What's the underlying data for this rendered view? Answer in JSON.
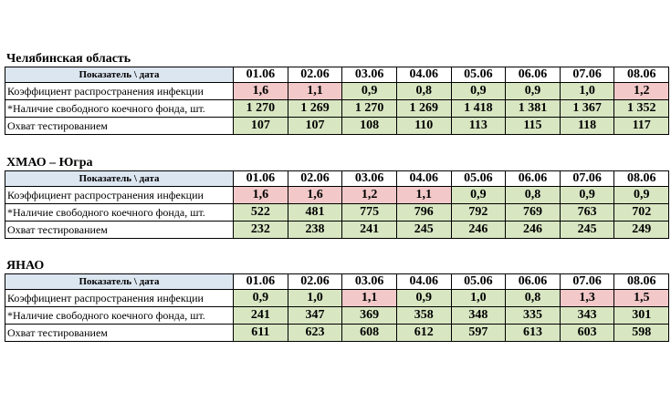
{
  "sections": [
    {
      "title": "Челябинская область",
      "header_label": "Показатель \\ дата",
      "dates": [
        "01.06",
        "02.06",
        "03.06",
        "04.06",
        "05.06",
        "06.06",
        "07.06",
        "08.06"
      ],
      "rows": [
        {
          "label": "Коэффициент распространения инфекции",
          "values": [
            "1,6",
            "1,1",
            "0,9",
            "0,8",
            "0,9",
            "0,9",
            "1,0",
            "1,2"
          ],
          "colors": [
            "#f2c8c8",
            "#f2c8c8",
            "#d8e6c2",
            "#d8e6c2",
            "#d8e6c2",
            "#d8e6c2",
            "#d8e6c2",
            "#f2c8c8"
          ]
        },
        {
          "label": "*Наличие свободного коечного фонда, шт.",
          "values": [
            "1 270",
            "1 269",
            "1 270",
            "1 269",
            "1 418",
            "1 381",
            "1 367",
            "1 352"
          ],
          "colors": [
            "#d8e6c2",
            "#d8e6c2",
            "#d8e6c2",
            "#d8e6c2",
            "#d8e6c2",
            "#d8e6c2",
            "#d8e6c2",
            "#d8e6c2"
          ]
        },
        {
          "label": "Охват тестированием",
          "values": [
            "107",
            "107",
            "108",
            "110",
            "113",
            "115",
            "118",
            "117"
          ],
          "colors": [
            "#d8e6c2",
            "#d8e6c2",
            "#d8e6c2",
            "#d8e6c2",
            "#d8e6c2",
            "#d8e6c2",
            "#d8e6c2",
            "#d8e6c2"
          ]
        }
      ]
    },
    {
      "title": "ХМАО – Югра",
      "header_label": "Показатель \\ дата",
      "dates": [
        "01.06",
        "02.06",
        "03.06",
        "04.06",
        "05.06",
        "06.06",
        "07.06",
        "08.06"
      ],
      "rows": [
        {
          "label": "Коэффициент распространения инфекции",
          "values": [
            "1,6",
            "1,6",
            "1,2",
            "1,1",
            "0,9",
            "0,8",
            "0,9",
            "0,9"
          ],
          "colors": [
            "#f2c8c8",
            "#f2c8c8",
            "#f2c8c8",
            "#f2c8c8",
            "#d8e6c2",
            "#d8e6c2",
            "#d8e6c2",
            "#d8e6c2"
          ]
        },
        {
          "label": "*Наличие свободного коечного фонда, шт.",
          "values": [
            "522",
            "481",
            "775",
            "796",
            "792",
            "769",
            "763",
            "702"
          ],
          "colors": [
            "#d8e6c2",
            "#d8e6c2",
            "#d8e6c2",
            "#d8e6c2",
            "#d8e6c2",
            "#d8e6c2",
            "#d8e6c2",
            "#d8e6c2"
          ]
        },
        {
          "label": "Охват тестированием",
          "values": [
            "232",
            "238",
            "241",
            "245",
            "246",
            "246",
            "245",
            "249"
          ],
          "colors": [
            "#d8e6c2",
            "#d8e6c2",
            "#d8e6c2",
            "#d8e6c2",
            "#d8e6c2",
            "#d8e6c2",
            "#d8e6c2",
            "#d8e6c2"
          ]
        }
      ]
    },
    {
      "title": "ЯНАО",
      "header_label": "Показатель \\ дата",
      "dates": [
        "01.06",
        "02.06",
        "03.06",
        "04.06",
        "05.06",
        "06.06",
        "07.06",
        "08.06"
      ],
      "rows": [
        {
          "label": "Коэффициент распространения инфекции",
          "values": [
            "0,9",
            "1,0",
            "1,1",
            "0,9",
            "1,0",
            "0,8",
            "1,3",
            "1,5"
          ],
          "colors": [
            "#d8e6c2",
            "#d8e6c2",
            "#f2c8c8",
            "#d8e6c2",
            "#d8e6c2",
            "#d8e6c2",
            "#f2c8c8",
            "#f2c8c8"
          ]
        },
        {
          "label": "*Наличие свободного коечного фонда, шт.",
          "values": [
            "241",
            "347",
            "369",
            "358",
            "348",
            "335",
            "343",
            "301"
          ],
          "colors": [
            "#d8e6c2",
            "#d8e6c2",
            "#d8e6c2",
            "#d8e6c2",
            "#d8e6c2",
            "#d8e6c2",
            "#d8e6c2",
            "#d8e6c2"
          ]
        },
        {
          "label": "Охват тестированием",
          "values": [
            "611",
            "623",
            "608",
            "612",
            "597",
            "613",
            "603",
            "598"
          ],
          "colors": [
            "#d8e6c2",
            "#d8e6c2",
            "#d8e6c2",
            "#d8e6c2",
            "#d8e6c2",
            "#d8e6c2",
            "#d8e6c2",
            "#d8e6c2"
          ]
        }
      ]
    }
  ]
}
